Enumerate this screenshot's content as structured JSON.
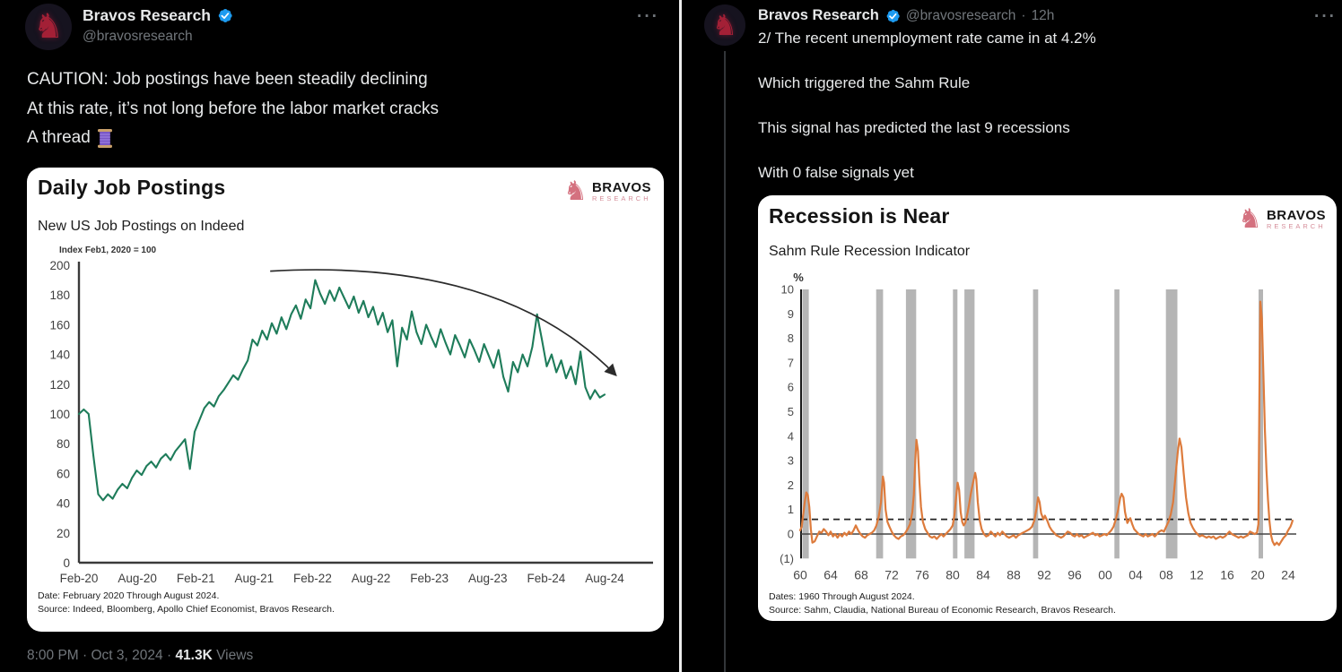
{
  "colors": {
    "background": "#000000",
    "text_primary": "#e7e9ea",
    "text_secondary": "#71767b",
    "verified_blue": "#1d9bf0",
    "avatar_knight_red": "#a32036",
    "brand_pink": "#d4717f",
    "jobs_line_green": "#1e7c5a",
    "sahm_line_orange": "#dd7b3c",
    "recession_band_gray": "#b5b5b5",
    "divider": "#ececec"
  },
  "icons": {
    "more": "more-horizontal-dots",
    "verified": "verified-badge-check",
    "avatar": "knight-chess-piece",
    "thread_emoji": "thread-spool"
  },
  "brand": {
    "logo_name": "BRAVOS",
    "logo_sub": "RESEARCH"
  },
  "left_tweet": {
    "author": "Bravos Research",
    "handle": "@bravosresearch",
    "text_lines": [
      "CAUTION: Job postings have been steadily declining",
      "At this rate, it’s not long before the labor market cracks",
      "A thread"
    ],
    "footer": {
      "time_date": "8:00 PM · Oct 3, 2024",
      "sep": "·",
      "views": "41.3K",
      "views_label": "Views"
    }
  },
  "right_tweet": {
    "author": "Bravos Research",
    "handle": "@bravosresearch",
    "sep": "·",
    "time": "12h",
    "text_lines": [
      "2/ The recent unemployment rate came in at 4.2%",
      "Which triggered the Sahm Rule",
      "This signal has predicted the last 9 recessions",
      "With 0 false signals yet"
    ]
  },
  "chart_data": [
    {
      "type": "line",
      "title": "Daily Job Postings",
      "subtitle": "New US Job Postings on Indeed",
      "axis_note": "Index Feb1, 2020 = 100",
      "ylim": [
        0,
        200
      ],
      "y_ticks": [
        0,
        20,
        40,
        60,
        80,
        100,
        120,
        140,
        160,
        180,
        200
      ],
      "x_range": [
        2020.083,
        2024.583
      ],
      "x_ticks": [
        {
          "label": "Feb-20",
          "t": 2020.083
        },
        {
          "label": "Aug-20",
          "t": 2020.583
        },
        {
          "label": "Feb-21",
          "t": 2021.083
        },
        {
          "label": "Aug-21",
          "t": 2021.583
        },
        {
          "label": "Feb-22",
          "t": 2022.083
        },
        {
          "label": "Aug-22",
          "t": 2022.583
        },
        {
          "label": "Feb-23",
          "t": 2023.083
        },
        {
          "label": "Aug-23",
          "t": 2023.583
        },
        {
          "label": "Feb-24",
          "t": 2024.083
        },
        {
          "label": "Aug-24",
          "t": 2024.583
        }
      ],
      "grid": false,
      "legend": "none",
      "series": [
        {
          "name": "New US job postings on Indeed, index Feb 1 2020 = 100",
          "color": "#1e7c5a",
          "values": [
            100,
            103,
            100,
            72,
            46,
            42,
            46,
            43,
            49,
            53,
            50,
            57,
            62,
            59,
            65,
            68,
            64,
            70,
            73,
            69,
            75,
            79,
            83,
            63,
            88,
            96,
            104,
            108,
            105,
            112,
            116,
            121,
            126,
            123,
            130,
            136,
            150,
            146,
            156,
            150,
            161,
            154,
            165,
            157,
            167,
            173,
            164,
            177,
            171,
            190,
            181,
            174,
            183,
            176,
            185,
            178,
            171,
            179,
            168,
            176,
            165,
            172,
            160,
            168,
            155,
            163,
            132,
            158,
            150,
            169,
            155,
            147,
            160,
            152,
            145,
            157,
            148,
            140,
            153,
            146,
            138,
            150,
            143,
            135,
            147,
            139,
            131,
            143,
            125,
            115,
            135,
            128,
            140,
            132,
            145,
            167,
            150,
            132,
            140,
            128,
            136,
            124,
            132,
            120,
            142,
            118,
            110,
            116,
            111,
            113
          ]
        }
      ],
      "annotation_arrow": {
        "from": [
          2021.72,
          196
        ],
        "ctrl": [
          2023.7,
          205
        ],
        "to": [
          2024.68,
          126
        ],
        "color": "#2b2b2b"
      },
      "footnotes": [
        "Date: February 2020 Through August 2024.",
        "Source: Indeed, Bloomberg, Apollo Chief Economist, Bravos Research."
      ]
    },
    {
      "type": "line",
      "title": "Recession is Near",
      "subtitle": "Sahm Rule Recession Indicator",
      "y_axis_unit": "%",
      "ylim": [
        -1,
        10
      ],
      "y_ticks": [
        10,
        9,
        8,
        7,
        6,
        5,
        4,
        3,
        2,
        1,
        0
      ],
      "y_bottom_label": "(1)",
      "x_range": [
        1959.6,
        2025.2
      ],
      "x_tick_years": [
        1960,
        1964,
        1968,
        1972,
        1976,
        1980,
        1984,
        1988,
        1992,
        1996,
        2000,
        2004,
        2008,
        2012,
        2016,
        2020,
        2024
      ],
      "x_tick_labels": [
        "60",
        "64",
        "68",
        "72",
        "76",
        "80",
        "84",
        "88",
        "92",
        "96",
        "00",
        "04",
        "08",
        "12",
        "16",
        "20",
        "24"
      ],
      "threshold_dashed": 0.6,
      "zero_line": 0,
      "grid": false,
      "legend": "none",
      "recession_bands": [
        [
          1960.29,
          1961.12
        ],
        [
          1969.96,
          1970.87
        ],
        [
          1973.87,
          1975.21
        ],
        [
          1980.04,
          1980.54
        ],
        [
          1981.54,
          1982.87
        ],
        [
          1990.54,
          1991.21
        ],
        [
          2001.21,
          2001.87
        ],
        [
          2007.96,
          2009.46
        ],
        [
          2020.12,
          2020.29
        ]
      ],
      "band_color": "#b5b5b5",
      "series_name": "Sahm rule recession indicator (%)",
      "line_color": "#dd7b3c",
      "points": [
        [
          1960.0,
          0.15
        ],
        [
          1960.2,
          0.3
        ],
        [
          1960.4,
          0.8
        ],
        [
          1960.6,
          1.3
        ],
        [
          1960.8,
          1.7
        ],
        [
          1961.0,
          1.6
        ],
        [
          1961.2,
          1.1
        ],
        [
          1961.4,
          0.2
        ],
        [
          1961.6,
          -0.35
        ],
        [
          1961.9,
          -0.3
        ],
        [
          1962.2,
          -0.1
        ],
        [
          1962.5,
          0.1
        ],
        [
          1962.8,
          0.05
        ],
        [
          1963.1,
          0.2
        ],
        [
          1963.4,
          0.1
        ],
        [
          1963.7,
          -0.05
        ],
        [
          1964.0,
          0.1
        ],
        [
          1964.3,
          -0.1
        ],
        [
          1964.6,
          0
        ],
        [
          1964.9,
          -0.15
        ],
        [
          1965.2,
          0
        ],
        [
          1965.5,
          -0.1
        ],
        [
          1965.8,
          0.05
        ],
        [
          1966.1,
          -0.05
        ],
        [
          1966.4,
          0.1
        ],
        [
          1966.7,
          0
        ],
        [
          1967.0,
          0.15
        ],
        [
          1967.3,
          0.35
        ],
        [
          1967.6,
          0.15
        ],
        [
          1967.9,
          0
        ],
        [
          1968.2,
          -0.1
        ],
        [
          1968.5,
          -0.15
        ],
        [
          1968.8,
          -0.05
        ],
        [
          1969.1,
          0
        ],
        [
          1969.4,
          0.05
        ],
        [
          1969.7,
          0.15
        ],
        [
          1970.0,
          0.35
        ],
        [
          1970.3,
          0.7
        ],
        [
          1970.6,
          1.3
        ],
        [
          1970.85,
          2.35
        ],
        [
          1971.0,
          2.1
        ],
        [
          1971.2,
          1.0
        ],
        [
          1971.45,
          0.5
        ],
        [
          1971.7,
          0.3
        ],
        [
          1972.0,
          0.1
        ],
        [
          1972.3,
          -0.05
        ],
        [
          1972.6,
          -0.15
        ],
        [
          1972.9,
          -0.2
        ],
        [
          1973.2,
          -0.1
        ],
        [
          1973.5,
          -0.05
        ],
        [
          1973.8,
          0.05
        ],
        [
          1974.1,
          0.2
        ],
        [
          1974.4,
          0.4
        ],
        [
          1974.7,
          0.9
        ],
        [
          1974.9,
          1.6
        ],
        [
          1975.1,
          3.0
        ],
        [
          1975.25,
          3.85
        ],
        [
          1975.45,
          3.4
        ],
        [
          1975.65,
          2.1
        ],
        [
          1975.85,
          1.1
        ],
        [
          1976.1,
          0.5
        ],
        [
          1976.4,
          0.2
        ],
        [
          1976.7,
          0.05
        ],
        [
          1977.0,
          -0.1
        ],
        [
          1977.3,
          -0.15
        ],
        [
          1977.6,
          -0.1
        ],
        [
          1977.9,
          -0.2
        ],
        [
          1978.2,
          -0.1
        ],
        [
          1978.5,
          0
        ],
        [
          1978.8,
          -0.1
        ],
        [
          1979.1,
          0
        ],
        [
          1979.4,
          0.1
        ],
        [
          1979.7,
          0.2
        ],
        [
          1980.0,
          0.35
        ],
        [
          1980.25,
          0.8
        ],
        [
          1980.45,
          1.5
        ],
        [
          1980.65,
          2.1
        ],
        [
          1980.85,
          1.8
        ],
        [
          1981.05,
          0.9
        ],
        [
          1981.25,
          0.5
        ],
        [
          1981.45,
          0.35
        ],
        [
          1981.65,
          0.45
        ],
        [
          1981.85,
          0.7
        ],
        [
          1982.1,
          1.1
        ],
        [
          1982.35,
          1.6
        ],
        [
          1982.6,
          2.0
        ],
        [
          1982.95,
          2.5
        ],
        [
          1983.1,
          2.25
        ],
        [
          1983.3,
          1.3
        ],
        [
          1983.55,
          0.55
        ],
        [
          1983.8,
          0.2
        ],
        [
          1984.1,
          0
        ],
        [
          1984.4,
          -0.1
        ],
        [
          1984.7,
          -0.05
        ],
        [
          1985.0,
          0.1
        ],
        [
          1985.3,
          0
        ],
        [
          1985.6,
          -0.1
        ],
        [
          1985.9,
          0.05
        ],
        [
          1986.2,
          -0.05
        ],
        [
          1986.5,
          0.1
        ],
        [
          1986.8,
          0
        ],
        [
          1987.1,
          -0.1
        ],
        [
          1987.4,
          -0.15
        ],
        [
          1987.7,
          -0.1
        ],
        [
          1988.0,
          -0.05
        ],
        [
          1988.3,
          -0.15
        ],
        [
          1988.6,
          -0.05
        ],
        [
          1988.9,
          0
        ],
        [
          1989.2,
          0.05
        ],
        [
          1989.5,
          0.1
        ],
        [
          1989.8,
          0.15
        ],
        [
          1990.1,
          0.2
        ],
        [
          1990.4,
          0.3
        ],
        [
          1990.7,
          0.55
        ],
        [
          1991.0,
          1.05
        ],
        [
          1991.2,
          1.5
        ],
        [
          1991.4,
          1.3
        ],
        [
          1991.6,
          0.85
        ],
        [
          1991.9,
          0.6
        ],
        [
          1992.1,
          0.75
        ],
        [
          1992.4,
          0.55
        ],
        [
          1992.7,
          0.3
        ],
        [
          1993.0,
          0.15
        ],
        [
          1993.3,
          0.05
        ],
        [
          1993.6,
          -0.05
        ],
        [
          1993.9,
          -0.1
        ],
        [
          1994.2,
          -0.15
        ],
        [
          1994.5,
          -0.1
        ],
        [
          1994.8,
          0
        ],
        [
          1995.1,
          0.1
        ],
        [
          1995.4,
          0.05
        ],
        [
          1995.7,
          -0.05
        ],
        [
          1996.0,
          -0.1
        ],
        [
          1996.3,
          0
        ],
        [
          1996.6,
          -0.1
        ],
        [
          1996.9,
          -0.05
        ],
        [
          1997.2,
          -0.15
        ],
        [
          1997.5,
          -0.1
        ],
        [
          1997.8,
          -0.05
        ],
        [
          1998.1,
          0
        ],
        [
          1998.4,
          0.05
        ],
        [
          1998.7,
          -0.05
        ],
        [
          1999.0,
          0
        ],
        [
          1999.3,
          -0.1
        ],
        [
          1999.6,
          -0.05
        ],
        [
          1999.9,
          0
        ],
        [
          2000.2,
          -0.05
        ],
        [
          2000.5,
          0.05
        ],
        [
          2000.8,
          0.15
        ],
        [
          2001.1,
          0.3
        ],
        [
          2001.4,
          0.6
        ],
        [
          2001.7,
          1.0
        ],
        [
          2001.95,
          1.45
        ],
        [
          2002.15,
          1.65
        ],
        [
          2002.4,
          1.5
        ],
        [
          2002.6,
          0.9
        ],
        [
          2002.9,
          0.45
        ],
        [
          2003.1,
          0.55
        ],
        [
          2003.3,
          0.65
        ],
        [
          2003.55,
          0.4
        ],
        [
          2003.8,
          0.2
        ],
        [
          2004.1,
          0.1
        ],
        [
          2004.4,
          0
        ],
        [
          2004.7,
          -0.05
        ],
        [
          2005.0,
          -0.1
        ],
        [
          2005.3,
          0
        ],
        [
          2005.6,
          -0.1
        ],
        [
          2005.9,
          -0.05
        ],
        [
          2006.2,
          0
        ],
        [
          2006.5,
          -0.1
        ],
        [
          2006.8,
          0
        ],
        [
          2007.1,
          0.1
        ],
        [
          2007.4,
          0.15
        ],
        [
          2007.7,
          0.1
        ],
        [
          2008.0,
          0.3
        ],
        [
          2008.3,
          0.5
        ],
        [
          2008.6,
          0.8
        ],
        [
          2008.9,
          1.3
        ],
        [
          2009.2,
          2.3
        ],
        [
          2009.5,
          3.3
        ],
        [
          2009.75,
          3.9
        ],
        [
          2010.0,
          3.55
        ],
        [
          2010.3,
          2.5
        ],
        [
          2010.6,
          1.5
        ],
        [
          2010.9,
          0.85
        ],
        [
          2011.2,
          0.45
        ],
        [
          2011.5,
          0.25
        ],
        [
          2011.8,
          0.1
        ],
        [
          2012.1,
          0
        ],
        [
          2012.4,
          -0.1
        ],
        [
          2012.7,
          -0.05
        ],
        [
          2013.0,
          -0.1
        ],
        [
          2013.3,
          -0.15
        ],
        [
          2013.6,
          -0.1
        ],
        [
          2013.9,
          -0.15
        ],
        [
          2014.2,
          -0.1
        ],
        [
          2014.5,
          -0.2
        ],
        [
          2014.8,
          -0.15
        ],
        [
          2015.1,
          -0.1
        ],
        [
          2015.4,
          -0.15
        ],
        [
          2015.7,
          -0.1
        ],
        [
          2016.0,
          0
        ],
        [
          2016.3,
          0.1
        ],
        [
          2016.6,
          0
        ],
        [
          2016.9,
          -0.05
        ],
        [
          2017.2,
          -0.1
        ],
        [
          2017.5,
          -0.15
        ],
        [
          2017.8,
          -0.1
        ],
        [
          2018.1,
          -0.15
        ],
        [
          2018.4,
          -0.1
        ],
        [
          2018.7,
          -0.05
        ],
        [
          2019.0,
          0.1
        ],
        [
          2019.3,
          0.05
        ],
        [
          2019.6,
          0
        ],
        [
          2019.9,
          0.05
        ],
        [
          2020.1,
          0.4
        ],
        [
          2020.25,
          6.5
        ],
        [
          2020.35,
          9.5
        ],
        [
          2020.55,
          8.8
        ],
        [
          2020.75,
          6.5
        ],
        [
          2020.95,
          4.2
        ],
        [
          2021.15,
          2.6
        ],
        [
          2021.35,
          1.4
        ],
        [
          2021.55,
          0.5
        ],
        [
          2021.75,
          -0.05
        ],
        [
          2021.95,
          -0.3
        ],
        [
          2022.2,
          -0.45
        ],
        [
          2022.5,
          -0.35
        ],
        [
          2022.8,
          -0.45
        ],
        [
          2023.1,
          -0.3
        ],
        [
          2023.4,
          -0.15
        ],
        [
          2023.7,
          -0.05
        ],
        [
          2023.9,
          0.1
        ],
        [
          2024.1,
          0.2
        ],
        [
          2024.3,
          0.3
        ],
        [
          2024.45,
          0.42
        ],
        [
          2024.58,
          0.55
        ]
      ],
      "footnotes": [
        "Dates: 1960 Through August 2024.",
        "Source: Sahm, Claudia, National Bureau of Economic Research, Bravos Research."
      ]
    }
  ]
}
